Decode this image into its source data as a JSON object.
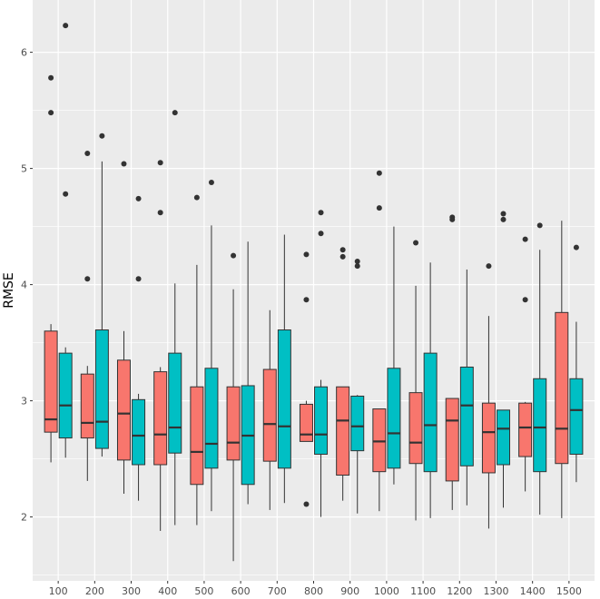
{
  "chart_data": {
    "type": "boxplot",
    "ylabel": "RMSE",
    "xlabel": "",
    "ylim": [
      1.45,
      6.45
    ],
    "grid": true,
    "legend": "none",
    "x_ticks": [
      100,
      200,
      300,
      400,
      500,
      600,
      700,
      800,
      900,
      1000,
      1100,
      1200,
      1300,
      1400,
      1500
    ],
    "y_ticks": [
      2,
      3,
      4,
      5,
      6
    ],
    "colors": {
      "series_a": "#F8766D",
      "series_b": "#00BFC4",
      "panel": "#EBEBEB",
      "grid": "#FFFFFF",
      "outline": "#333333"
    },
    "series": [
      {
        "color": "#F8766D",
        "boxes": [
          {
            "x": 80,
            "whisker_low": 2.47,
            "q1": 2.73,
            "median": 2.84,
            "q3": 3.6,
            "whisker_high": 3.66,
            "outliers": [
              5.78,
              5.48
            ]
          },
          {
            "x": 180,
            "whisker_low": 2.31,
            "q1": 2.68,
            "median": 2.81,
            "q3": 3.23,
            "whisker_high": 3.3,
            "outliers": [
              5.13,
              4.05
            ]
          },
          {
            "x": 280,
            "whisker_low": 2.2,
            "q1": 2.49,
            "median": 2.89,
            "q3": 3.35,
            "whisker_high": 3.6,
            "outliers": [
              5.04
            ]
          },
          {
            "x": 380,
            "whisker_low": 1.88,
            "q1": 2.45,
            "median": 2.71,
            "q3": 3.25,
            "whisker_high": 3.29,
            "outliers": [
              5.05,
              4.62
            ]
          },
          {
            "x": 480,
            "whisker_low": 1.93,
            "q1": 2.28,
            "median": 2.56,
            "q3": 3.12,
            "whisker_high": 4.17,
            "outliers": [
              4.75
            ]
          },
          {
            "x": 580,
            "whisker_low": 1.62,
            "q1": 2.49,
            "median": 2.64,
            "q3": 3.12,
            "whisker_high": 3.96,
            "outliers": [
              4.25
            ]
          },
          {
            "x": 680,
            "whisker_low": 2.06,
            "q1": 2.48,
            "median": 2.8,
            "q3": 3.27,
            "whisker_high": 3.78,
            "outliers": []
          },
          {
            "x": 780,
            "whisker_low": 2.65,
            "q1": 2.65,
            "median": 2.71,
            "q3": 2.97,
            "whisker_high": 3.0,
            "outliers": [
              4.26,
              3.87,
              2.11
            ]
          },
          {
            "x": 880,
            "whisker_low": 2.14,
            "q1": 2.36,
            "median": 2.83,
            "q3": 3.12,
            "whisker_high": 3.12,
            "outliers": [
              4.3,
              4.24
            ]
          },
          {
            "x": 980,
            "whisker_low": 2.05,
            "q1": 2.39,
            "median": 2.65,
            "q3": 2.93,
            "whisker_high": 2.93,
            "outliers": [
              4.96,
              4.66
            ]
          },
          {
            "x": 1080,
            "whisker_low": 1.97,
            "q1": 2.46,
            "median": 2.64,
            "q3": 3.07,
            "whisker_high": 3.99,
            "outliers": [
              4.36
            ]
          },
          {
            "x": 1180,
            "whisker_low": 2.06,
            "q1": 2.31,
            "median": 2.83,
            "q3": 3.02,
            "whisker_high": 3.02,
            "outliers": [
              4.58,
              4.56
            ]
          },
          {
            "x": 1280,
            "whisker_low": 1.9,
            "q1": 2.38,
            "median": 2.73,
            "q3": 2.98,
            "whisker_high": 3.73,
            "outliers": [
              4.16
            ]
          },
          {
            "x": 1380,
            "whisker_low": 2.22,
            "q1": 2.52,
            "median": 2.77,
            "q3": 2.98,
            "whisker_high": 2.99,
            "outliers": [
              4.39,
              3.87
            ]
          },
          {
            "x": 1480,
            "whisker_low": 1.99,
            "q1": 2.46,
            "median": 2.76,
            "q3": 3.76,
            "whisker_high": 4.55,
            "outliers": []
          }
        ]
      },
      {
        "color": "#00BFC4",
        "boxes": [
          {
            "x": 120,
            "whisker_low": 2.51,
            "q1": 2.68,
            "median": 2.96,
            "q3": 3.41,
            "whisker_high": 3.46,
            "outliers": [
              6.23,
              4.78
            ]
          },
          {
            "x": 220,
            "whisker_low": 2.52,
            "q1": 2.59,
            "median": 2.82,
            "q3": 3.61,
            "whisker_high": 5.06,
            "outliers": [
              5.28
            ]
          },
          {
            "x": 320,
            "whisker_low": 2.14,
            "q1": 2.45,
            "median": 2.7,
            "q3": 3.01,
            "whisker_high": 3.06,
            "outliers": [
              4.74,
              4.05
            ]
          },
          {
            "x": 420,
            "whisker_low": 1.93,
            "q1": 2.55,
            "median": 2.77,
            "q3": 3.41,
            "whisker_high": 4.01,
            "outliers": [
              5.48
            ]
          },
          {
            "x": 520,
            "whisker_low": 2.05,
            "q1": 2.42,
            "median": 2.63,
            "q3": 3.28,
            "whisker_high": 4.51,
            "outliers": [
              4.88
            ]
          },
          {
            "x": 620,
            "whisker_low": 2.11,
            "q1": 2.28,
            "median": 2.7,
            "q3": 3.13,
            "whisker_high": 4.37,
            "outliers": []
          },
          {
            "x": 720,
            "whisker_low": 2.12,
            "q1": 2.42,
            "median": 2.78,
            "q3": 3.61,
            "whisker_high": 4.43,
            "outliers": []
          },
          {
            "x": 820,
            "whisker_low": 2.0,
            "q1": 2.54,
            "median": 2.71,
            "q3": 3.12,
            "whisker_high": 3.18,
            "outliers": [
              4.62,
              4.44
            ]
          },
          {
            "x": 920,
            "whisker_low": 2.03,
            "q1": 2.57,
            "median": 2.78,
            "q3": 3.04,
            "whisker_high": 3.05,
            "outliers": [
              4.2,
              4.16
            ]
          },
          {
            "x": 1020,
            "whisker_low": 2.28,
            "q1": 2.42,
            "median": 2.72,
            "q3": 3.28,
            "whisker_high": 4.5,
            "outliers": []
          },
          {
            "x": 1120,
            "whisker_low": 1.99,
            "q1": 2.39,
            "median": 2.79,
            "q3": 3.41,
            "whisker_high": 4.19,
            "outliers": []
          },
          {
            "x": 1220,
            "whisker_low": 2.1,
            "q1": 2.44,
            "median": 2.96,
            "q3": 3.29,
            "whisker_high": 4.13,
            "outliers": []
          },
          {
            "x": 1320,
            "whisker_low": 2.08,
            "q1": 2.45,
            "median": 2.76,
            "q3": 2.92,
            "whisker_high": 2.92,
            "outliers": [
              4.61,
              4.56
            ]
          },
          {
            "x": 1420,
            "whisker_low": 2.02,
            "q1": 2.39,
            "median": 2.77,
            "q3": 3.19,
            "whisker_high": 4.3,
            "outliers": [
              4.51
            ]
          },
          {
            "x": 1520,
            "whisker_low": 2.3,
            "q1": 2.54,
            "median": 2.92,
            "q3": 3.19,
            "whisker_high": 3.68,
            "outliers": [
              4.32
            ]
          }
        ]
      }
    ]
  }
}
